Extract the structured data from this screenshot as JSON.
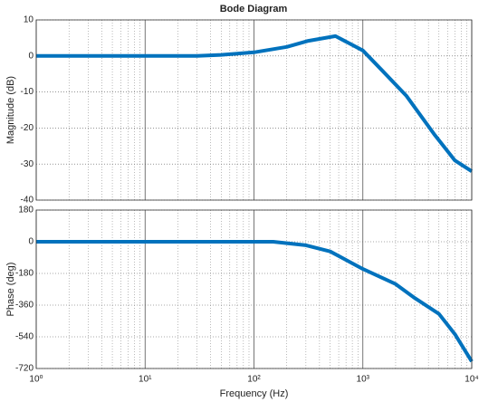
{
  "chart_data": [
    {
      "type": "line",
      "title": "Bode Diagram",
      "y_label": "Magnitude (dB)",
      "x": [
        1,
        10,
        30,
        50,
        100,
        200,
        316,
        560,
        1000,
        1500,
        2500,
        4600,
        7000,
        10000
      ],
      "series": [
        {
          "name": "Magnitude",
          "color": "#0072bd",
          "values": [
            0,
            0,
            0,
            0.3,
            1,
            2.5,
            4.2,
            5.5,
            1.5,
            -4,
            -11,
            -22,
            -29,
            -32
          ]
        }
      ],
      "xlim": [
        1,
        10000
      ],
      "x_log": true,
      "xticks": [
        {
          "value": 1,
          "label": "10⁰"
        },
        {
          "value": 10,
          "label": "10¹"
        },
        {
          "value": 100,
          "label": "10²"
        },
        {
          "value": 1000,
          "label": "10³"
        },
        {
          "value": 10000,
          "label": "10⁴"
        }
      ],
      "ylim": [
        -40,
        10
      ],
      "yticks": [
        10,
        0,
        -10,
        -20,
        -30,
        -40
      ],
      "grid": true
    },
    {
      "type": "line",
      "y_label": "Phase (deg)",
      "x_label": "Frequency  (Hz)",
      "x": [
        1,
        10,
        100,
        150,
        300,
        500,
        1000,
        2000,
        3000,
        5000,
        7000,
        10000
      ],
      "series": [
        {
          "name": "Phase",
          "color": "#0072bd",
          "values": [
            0,
            0,
            0,
            0,
            -20,
            -55,
            -155,
            -240,
            -320,
            -410,
            -525,
            -680
          ]
        }
      ],
      "xlim": [
        1,
        10000
      ],
      "x_log": true,
      "xticks": [
        {
          "value": 1,
          "label": "10⁰"
        },
        {
          "value": 10,
          "label": "10¹"
        },
        {
          "value": 100,
          "label": "10²"
        },
        {
          "value": 1000,
          "label": "10³"
        },
        {
          "value": 10000,
          "label": "10⁴"
        }
      ],
      "ylim": [
        -720,
        180
      ],
      "yticks": [
        180,
        0,
        -180,
        -360,
        -540,
        -720
      ],
      "grid": true
    }
  ]
}
